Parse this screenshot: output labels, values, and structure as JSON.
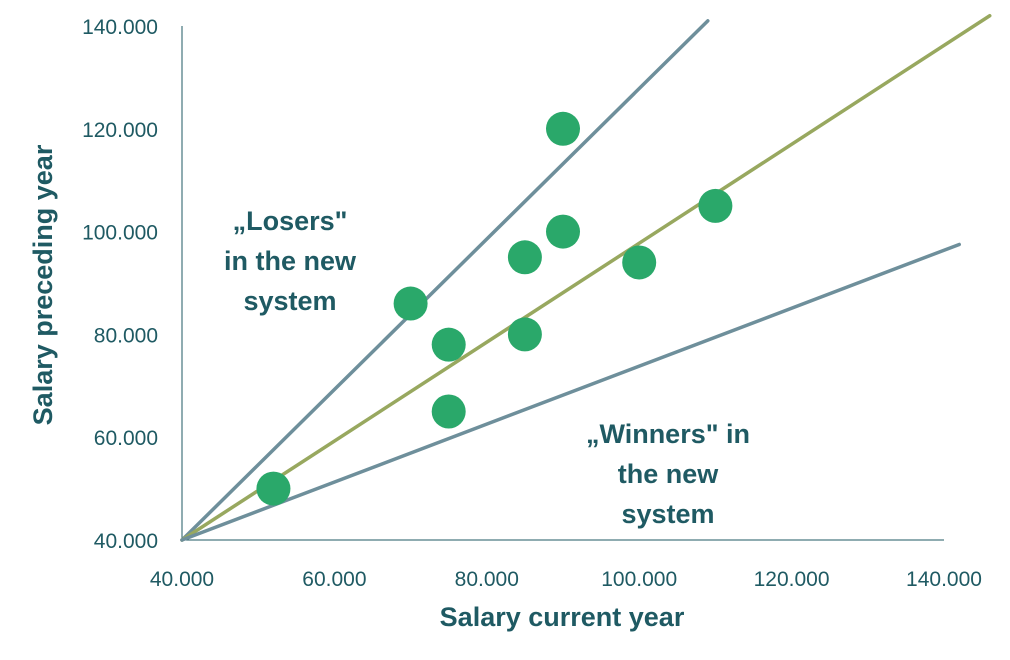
{
  "chart_data": {
    "type": "scatter",
    "xlabel": "Salary current year",
    "ylabel": "Salary preceding year",
    "xlim": [
      40000,
      140000
    ],
    "ylim": [
      40000,
      140000
    ],
    "x_ticks": [
      40000,
      60000,
      80000,
      100000,
      120000,
      140000
    ],
    "y_ticks": [
      40000,
      60000,
      80000,
      100000,
      120000,
      140000
    ],
    "x_tick_labels": [
      "40.000",
      "60.000",
      "80.000",
      "100.000",
      "120.000",
      "140.000"
    ],
    "y_tick_labels": [
      "40.000",
      "60.000",
      "80.000",
      "100.000",
      "120.000",
      "140.000"
    ],
    "grid": false,
    "series": [
      {
        "type": "scatter",
        "color": "#2aa86a",
        "points": [
          {
            "x": 52000,
            "y": 50000
          },
          {
            "x": 70000,
            "y": 86000
          },
          {
            "x": 75000,
            "y": 78000
          },
          {
            "x": 75000,
            "y": 65000
          },
          {
            "x": 85000,
            "y": 95000
          },
          {
            "x": 85000,
            "y": 80000
          },
          {
            "x": 90000,
            "y": 120000
          },
          {
            "x": 90000,
            "y": 100000
          },
          {
            "x": 100000,
            "y": 94000
          },
          {
            "x": 110000,
            "y": 105000
          }
        ]
      }
    ],
    "lines": [
      {
        "color": "#6e8f9b",
        "points": [
          {
            "x": 40000,
            "y": 40000
          },
          {
            "x": 109000,
            "y": 141000
          }
        ]
      },
      {
        "color": "#98a85f",
        "points": [
          {
            "x": 40000,
            "y": 40000
          },
          {
            "x": 146000,
            "y": 142000
          }
        ]
      },
      {
        "color": "#6e8f9b",
        "points": [
          {
            "x": 40000,
            "y": 40000
          },
          {
            "x": 142000,
            "y": 97500
          }
        ]
      }
    ],
    "annotations": [
      {
        "lines": [
          "„Losers\"",
          "in the new",
          "system"
        ],
        "position": "upper-left"
      },
      {
        "lines": [
          "„Winners\" in",
          "the new",
          "system"
        ],
        "position": "lower-right"
      }
    ]
  }
}
